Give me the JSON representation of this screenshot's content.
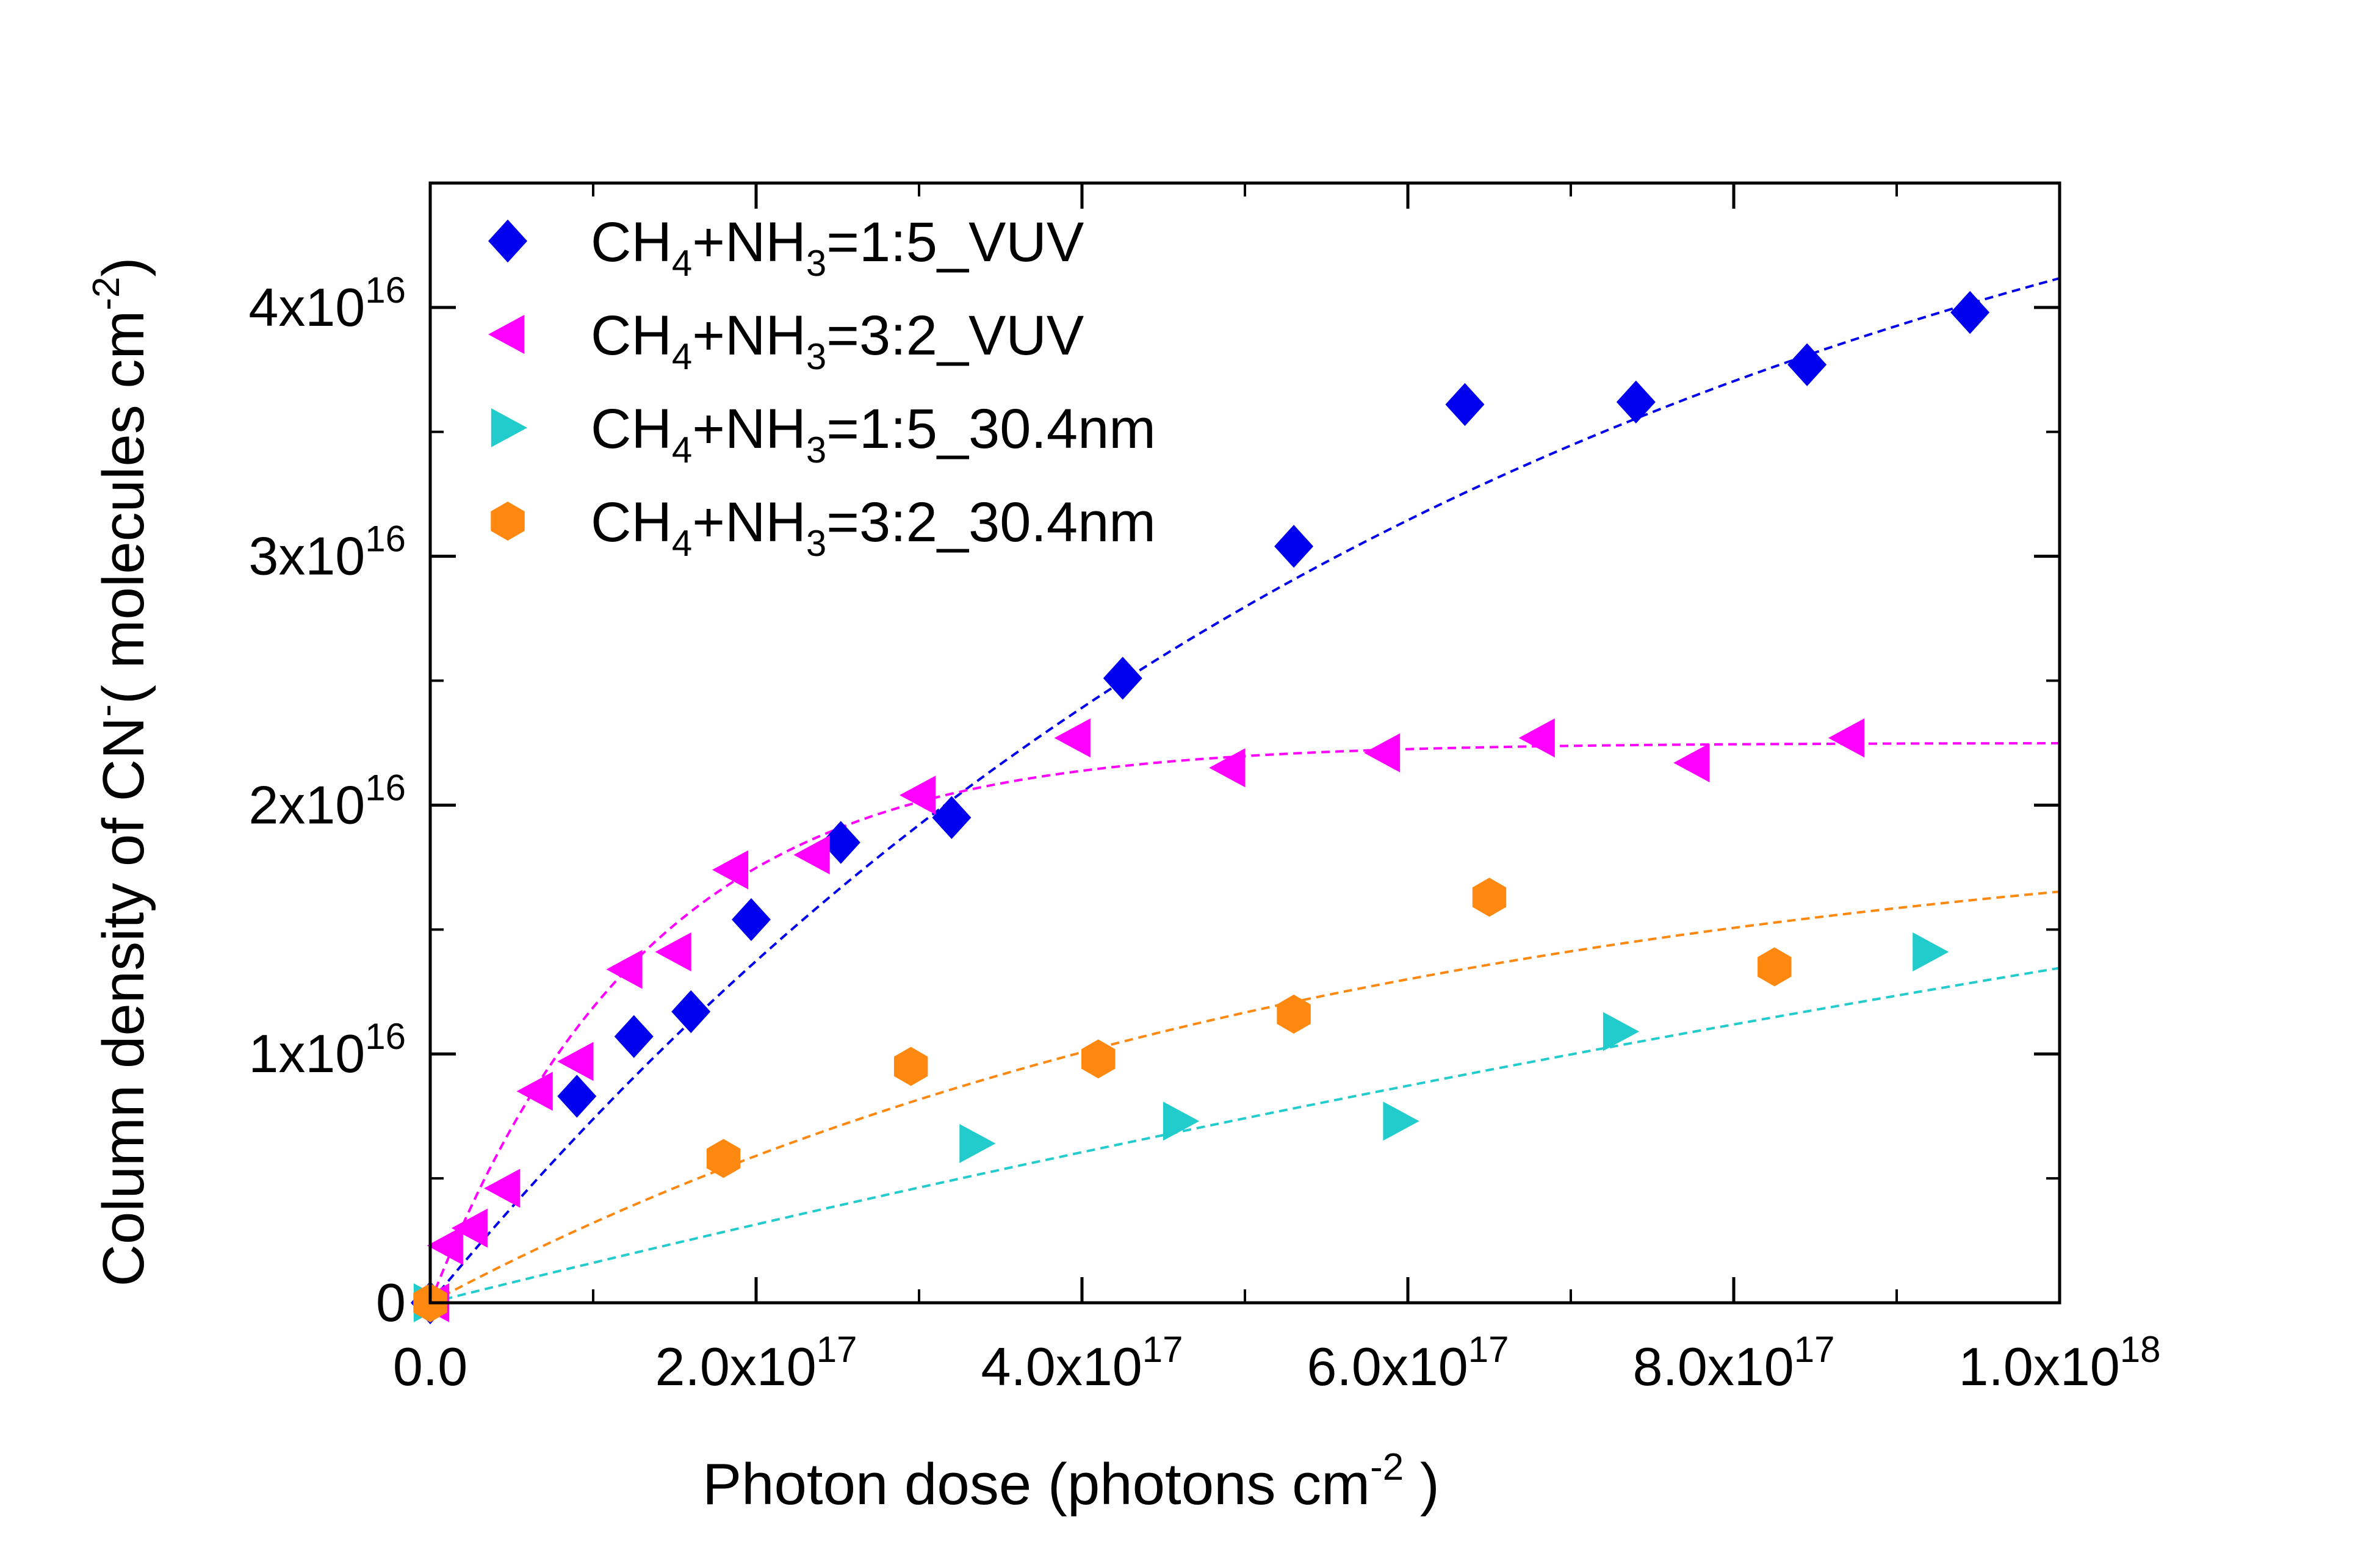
{
  "chart_data": {
    "type": "scatter",
    "title": "",
    "xlabel": "Photon dose (photons cm",
    "xlabel_sup": "-2",
    "xlabel_tail": " )",
    "ylabel": "Column density of CN",
    "ylabel_sup1": "-",
    "ylabel_mid": "( molecules cm",
    "ylabel_sup2": "-2",
    "ylabel_tail": ")",
    "xlim": [
      0,
      1e+18
    ],
    "ylim": [
      0,
      4.5e+16
    ],
    "x_ticks": [
      {
        "value": 0.0,
        "base": "0.0",
        "exp": ""
      },
      {
        "value": 2e+17,
        "base": "2.0x10",
        "exp": "17"
      },
      {
        "value": 4e+17,
        "base": "4.0x10",
        "exp": "17"
      },
      {
        "value": 6e+17,
        "base": "6.0x10",
        "exp": "17"
      },
      {
        "value": 8e+17,
        "base": "8.0x10",
        "exp": "17"
      },
      {
        "value": 1e+18,
        "base": "1.0x10",
        "exp": "18"
      }
    ],
    "y_ticks": [
      {
        "value": 0,
        "base": "0",
        "exp": ""
      },
      {
        "value": 1e+16,
        "base": "1x10",
        "exp": "16"
      },
      {
        "value": 2e+16,
        "base": "2x10",
        "exp": "16"
      },
      {
        "value": 3e+16,
        "base": "3x10",
        "exp": "16"
      },
      {
        "value": 4e+16,
        "base": "4x10",
        "exp": "16"
      }
    ],
    "x_minor_step": 1e+17,
    "y_minor_step": 5000000000000000.0,
    "grid": false,
    "legend_position": "top-left",
    "series": [
      {
        "label_parts": [
          "CH",
          "4",
          "+NH",
          "3",
          "=1:5_VUV"
        ],
        "marker": "diamond",
        "color": "#0000EE",
        "x": [
          0,
          9e+16,
          1.25e+17,
          1.6e+17,
          1.97e+17,
          2.52e+17,
          3.2e+17,
          4.25e+17,
          5.3e+17,
          6.35e+17,
          7.4e+17,
          8.45e+17,
          9.45e+17
        ],
        "y": [
          0,
          8300000000000000.0,
          1.07e+16,
          1.17e+16,
          1.54e+16,
          1.85e+16,
          1.95e+16,
          2.51e+16,
          3.04e+16,
          3.61e+16,
          3.62e+16,
          3.77e+16,
          3.98e+16
        ],
        "fit": {
          "A": 5.3e+16,
          "k": 1.5e-18
        }
      },
      {
        "label_parts": [
          "CH",
          "4",
          "+NH",
          "3",
          "=3:2_VUV"
        ],
        "marker": "triangle-left",
        "color": "#FF00FF",
        "x": [
          1500000000000000.0,
          1e+16,
          2.5e+16,
          4.5e+16,
          6.5e+16,
          9e+16,
          1.2e+17,
          1.5e+17,
          1.85e+17,
          2.35e+17,
          3e+17,
          3.95e+17,
          4.9e+17,
          5.85e+17,
          6.8e+17,
          7.75e+17,
          8.7e+17
        ],
        "y": [
          0,
          2300000000000000.0,
          3000000000000000.0,
          4600000000000000.0,
          8500000000000000.0,
          9700000000000000.0,
          1.34e+16,
          1.41e+16,
          1.74e+16,
          1.8e+16,
          2.04e+16,
          2.27e+16,
          2.15e+16,
          2.21e+16,
          2.27e+16,
          2.17e+16,
          2.27e+16
        ],
        "fit": {
          "A": 2.25e+16,
          "k": 7.5e-18
        }
      },
      {
        "label_parts": [
          "CH",
          "4",
          "+NH",
          "3",
          "=1:5_30.4nm"
        ],
        "marker": "triangle-right",
        "color": "#22CCCC",
        "x": [
          0,
          3.35e+17,
          4.6e+17,
          5.95e+17,
          7.3e+17,
          9.2e+17
        ],
        "y": [
          0,
          6400000000000000.0,
          7300000000000000.0,
          7300000000000000.0,
          1.09e+16,
          1.41e+16
        ],
        "fit": {
          "A": 4e+16,
          "k": 4.1e-19
        }
      },
      {
        "label_parts": [
          "CH",
          "4",
          "+NH",
          "3",
          "=3:2_30.4nm"
        ],
        "marker": "hexagon",
        "color": "#FF8811",
        "x": [
          0,
          1.8e+17,
          2.95e+17,
          4.1e+17,
          5.3e+17,
          6.5e+17,
          8.25e+17
        ],
        "y": [
          0,
          5800000000000000.0,
          9500000000000000.0,
          9800000000000000.0,
          1.16e+16,
          1.63e+16,
          1.35e+16
        ],
        "fit": {
          "A": 2e+16,
          "k": 1.75e-18
        }
      }
    ]
  }
}
